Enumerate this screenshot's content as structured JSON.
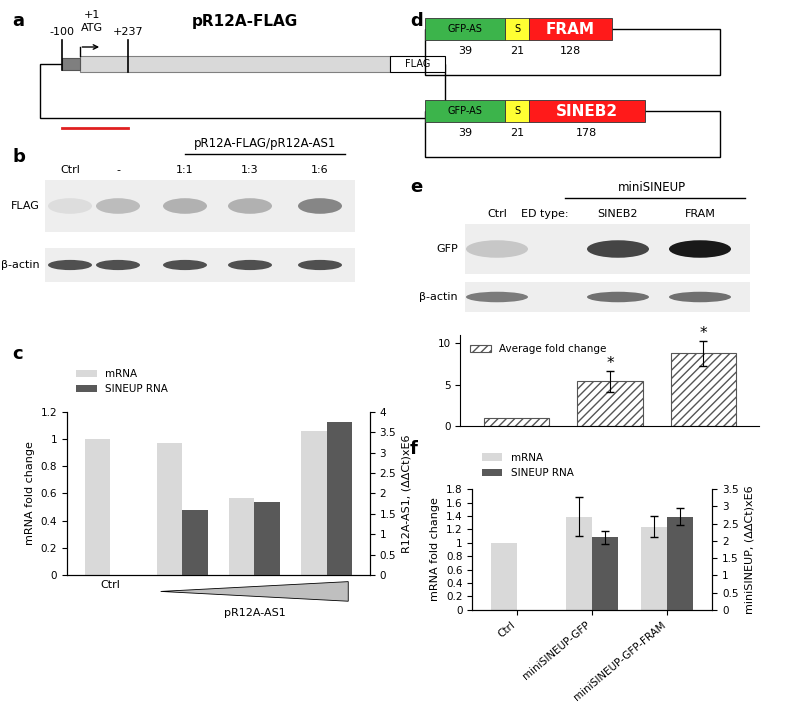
{
  "panel_labels": [
    "a",
    "b",
    "c",
    "d",
    "e",
    "f"
  ],
  "construct_a": {
    "title": "pR12A-FLAG",
    "positions": [
      "-100",
      "+1",
      "+237"
    ],
    "start_codon": "ATG",
    "tag": "FLAG"
  },
  "blot_b": {
    "header": "pR12A-FLAG/pR12A-AS1",
    "lanes": [
      "Ctrl",
      "-",
      "1:1",
      "1:3",
      "1:6"
    ],
    "rows": [
      {
        "label": "FLAG",
        "bands": [
          0.1,
          0.25,
          0.3,
          0.3,
          0.5
        ]
      },
      {
        "label": "β-actin",
        "bands": [
          0.75,
          0.75,
          0.75,
          0.75,
          0.75
        ]
      }
    ]
  },
  "constructs_d": [
    {
      "segments": [
        {
          "label": "GFP-AS",
          "length": 39,
          "color": "#3cb44b"
        },
        {
          "label": "S",
          "length": 21,
          "color": "#ffff33"
        },
        {
          "label": "FRAM",
          "length": 128,
          "color": "#ff1a1a"
        }
      ]
    },
    {
      "segments": [
        {
          "label": "GFP-AS",
          "length": 39,
          "color": "#3cb44b"
        },
        {
          "label": "S",
          "length": 21,
          "color": "#ffff33"
        },
        {
          "label": "SINEB2",
          "length": 178,
          "color": "#ff1a1a"
        }
      ]
    }
  ],
  "blot_e": {
    "header": "miniSINEUP",
    "lane_caption": "ED type:",
    "lanes": [
      "Ctrl",
      "SINEB2",
      "FRAM"
    ],
    "rows": [
      {
        "label": "GFP",
        "bands": [
          0.2,
          0.8,
          1.0
        ]
      },
      {
        "label": "β-actin",
        "bands": [
          0.55,
          0.6,
          0.6
        ]
      }
    ]
  },
  "chart_data": [
    {
      "type": "bar",
      "categories": [
        "Ctrl",
        null,
        null,
        null
      ],
      "y_label": "mRNA fold change",
      "y2_label": "R12A-AS1, (ΔΔCt)xE6",
      "annotation": "pR12A-AS1",
      "ylim": [
        0,
        1.2
      ],
      "yticks": [
        0,
        0.2,
        0.4,
        0.6,
        0.8,
        1,
        1.2
      ],
      "y2lim": [
        0,
        4
      ],
      "y2ticks": [
        0,
        0.5,
        1,
        1.5,
        2,
        2.5,
        3,
        3.5,
        4
      ],
      "legend": "upper left",
      "series": [
        {
          "name": "mRNA",
          "color": "#d9d9d9",
          "values": [
            1,
            0.97,
            0.57,
            1.06
          ]
        },
        {
          "name": "SINEUP RNA",
          "color": "#595959",
          "axis": "y2",
          "values": [
            null,
            1.6,
            1.8,
            3.75
          ]
        }
      ]
    },
    {
      "type": "bar",
      "categories": [
        null,
        null,
        null
      ],
      "tick_labels": "y",
      "ylim": [
        0,
        11
      ],
      "yticks": [
        0,
        5,
        10
      ],
      "legend": "upper left",
      "significance": [
        null,
        "*",
        "*"
      ],
      "series": [
        {
          "name": "Average fold change",
          "color": "#ffffff",
          "values": [
            1,
            5.4,
            8.8
          ],
          "errors": [
            null,
            1.3,
            1.5
          ]
        }
      ]
    },
    {
      "type": "bar",
      "categories": [
        "Ctrl",
        "miniSINEUP-GFP",
        "miniSINEUP-GFP-FRAM"
      ],
      "y_label": "mRNA fold change",
      "y2_label": "miniSINEUP, (ΔΔCt)xE6",
      "ylim": [
        0,
        1.8
      ],
      "yticks": [
        0,
        0.2,
        0.4,
        0.6,
        0.8,
        1,
        1.2,
        1.4,
        1.6,
        1.8
      ],
      "y2lim": [
        0,
        3.5
      ],
      "y2ticks": [
        0,
        0.5,
        1,
        1.5,
        2,
        2.5,
        3,
        3.5
      ],
      "legend": "upper left",
      "series": [
        {
          "name": "mRNA",
          "color": "#d9d9d9",
          "values": [
            1,
            1.39,
            1.24
          ],
          "errors": [
            null,
            0.29,
            0.16
          ]
        },
        {
          "name": "SINEUP RNA",
          "color": "#595959",
          "axis": "y2",
          "values": [
            null,
            2.1,
            2.7
          ],
          "errors": [
            null,
            0.2,
            0.25
          ]
        }
      ]
    }
  ]
}
